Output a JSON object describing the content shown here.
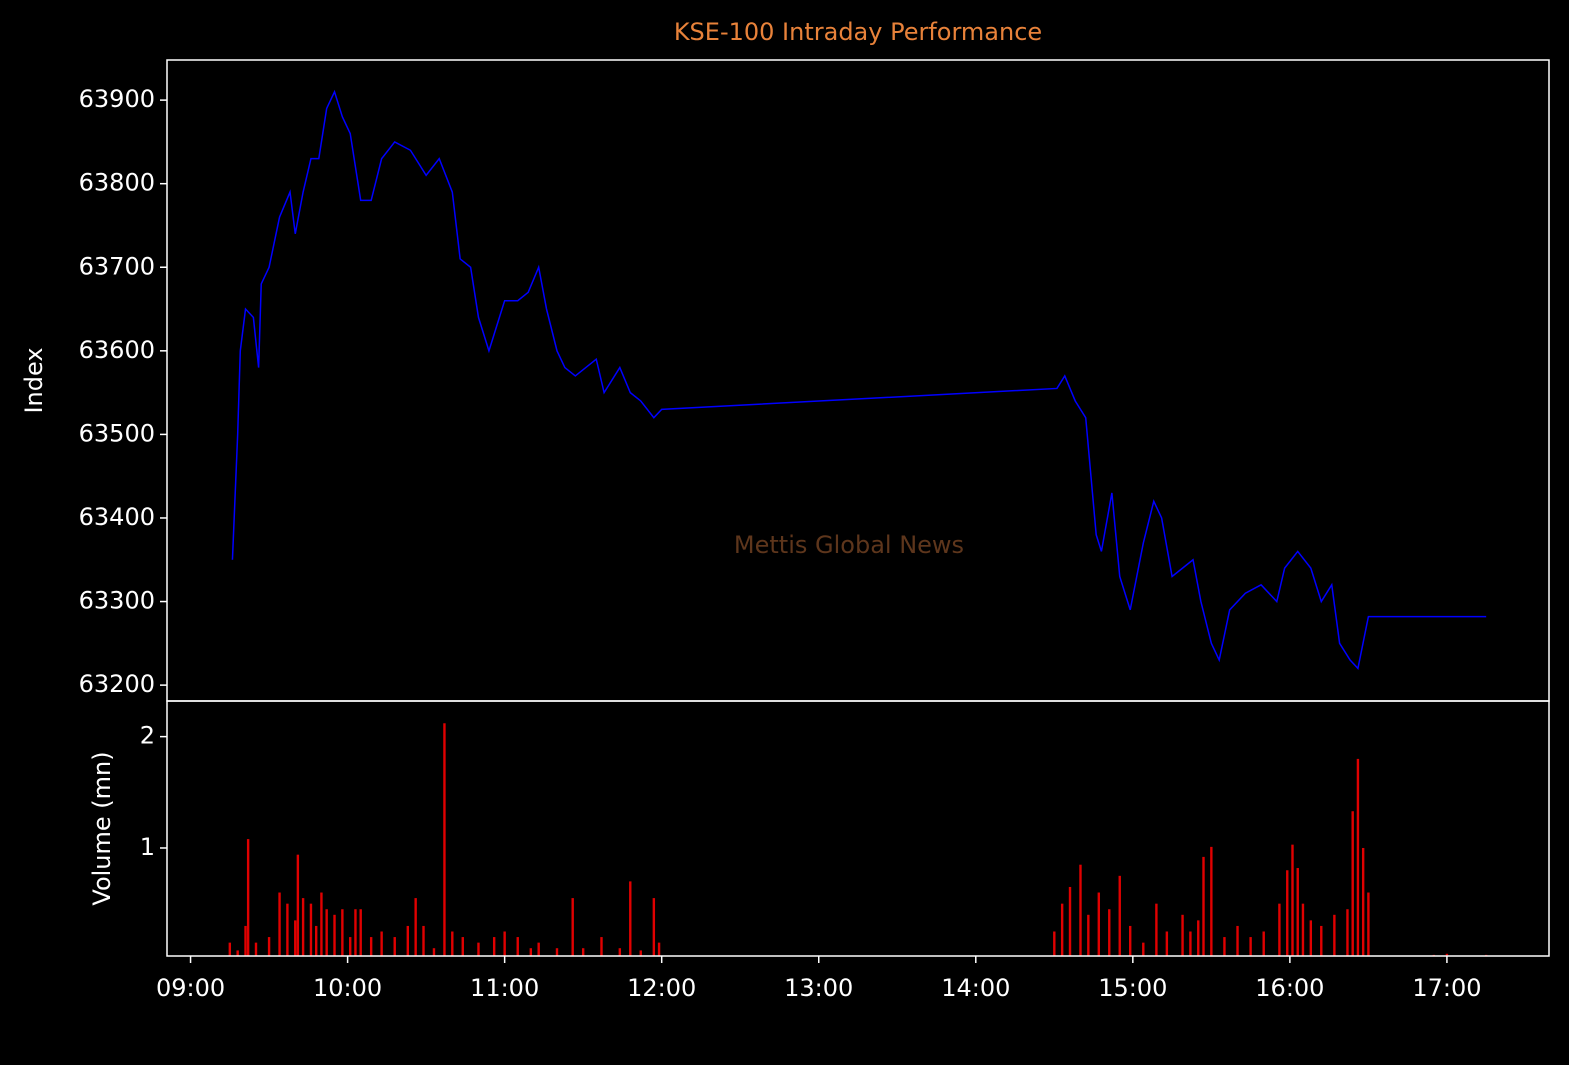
{
  "chart_data": [
    {
      "type": "line",
      "title": "KSE-100 Intraday Performance",
      "title_color": "#e8823a",
      "ylabel": "Index",
      "annotation": "Mettis Global News",
      "annotation_color": "#5e361c",
      "x": [
        "09:16",
        "09:18",
        "09:19",
        "09:21",
        "09:24",
        "09:26",
        "09:27",
        "09:30",
        "09:34",
        "09:38",
        "09:40",
        "09:43",
        "09:46",
        "09:49",
        "09:52",
        "09:55",
        "09:58",
        "10:01",
        "10:05",
        "10:09",
        "10:13",
        "10:18",
        "10:24",
        "10:30",
        "10:35",
        "10:40",
        "10:43",
        "10:47",
        "10:50",
        "10:54",
        "10:58",
        "11:00",
        "11:05",
        "11:09",
        "11:13",
        "11:16",
        "11:20",
        "11:23",
        "11:27",
        "11:35",
        "11:38",
        "11:44",
        "11:48",
        "11:52",
        "11:57",
        "12:00",
        "14:31",
        "14:34",
        "14:38",
        "14:42",
        "14:44",
        "14:46",
        "14:48",
        "14:52",
        "14:55",
        "14:59",
        "15:04",
        "15:08",
        "15:11",
        "15:15",
        "15:19",
        "15:23",
        "15:26",
        "15:30",
        "15:33",
        "15:37",
        "15:43",
        "15:49",
        "15:55",
        "15:58",
        "16:03",
        "16:08",
        "16:12",
        "16:16",
        "16:19",
        "16:23",
        "16:26",
        "16:30",
        "17:15"
      ],
      "series": [
        {
          "name": "Index",
          "color": "#0000ff",
          "values": [
            63350,
            63500,
            63600,
            63650,
            63640,
            63580,
            63680,
            63700,
            63760,
            63790,
            63740,
            63790,
            63830,
            63830,
            63890,
            63910,
            63880,
            63860,
            63780,
            63780,
            63830,
            63850,
            63840,
            63810,
            63830,
            63790,
            63710,
            63700,
            63640,
            63600,
            63640,
            63660,
            63660,
            63670,
            63700,
            63650,
            63600,
            63580,
            63570,
            63590,
            63550,
            63580,
            63550,
            63540,
            63520,
            63530,
            63555,
            63570,
            63540,
            63520,
            63450,
            63380,
            63360,
            63430,
            63330,
            63290,
            63370,
            63420,
            63400,
            63330,
            63340,
            63350,
            63300,
            63250,
            63230,
            63290,
            63310,
            63320,
            63300,
            63340,
            63360,
            63340,
            63300,
            63320,
            63250,
            63230,
            63220,
            63282,
            63282
          ]
        }
      ],
      "xlim": [
        "08:51",
        "17:39"
      ],
      "ylim": [
        63181,
        63948
      ],
      "yticks": [
        63200,
        63300,
        63400,
        63500,
        63600,
        63700,
        63800,
        63900
      ]
    },
    {
      "type": "bar",
      "ylabel": "Volume (mn)",
      "x": [
        "09:15",
        "09:18",
        "09:21",
        "09:22",
        "09:25",
        "09:30",
        "09:34",
        "09:37",
        "09:40",
        "09:41",
        "09:43",
        "09:46",
        "09:48",
        "09:50",
        "09:52",
        "09:55",
        "09:58",
        "10:01",
        "10:03",
        "10:05",
        "10:09",
        "10:13",
        "10:18",
        "10:23",
        "10:26",
        "10:29",
        "10:33",
        "10:37",
        "10:40",
        "10:44",
        "10:50",
        "10:56",
        "11:00",
        "11:05",
        "11:10",
        "11:13",
        "11:20",
        "11:26",
        "11:30",
        "11:37",
        "11:44",
        "11:48",
        "11:52",
        "11:57",
        "11:59",
        "14:30",
        "14:33",
        "14:36",
        "14:40",
        "14:43",
        "14:47",
        "14:51",
        "14:55",
        "14:59",
        "15:04",
        "15:09",
        "15:13",
        "15:19",
        "15:22",
        "15:25",
        "15:27",
        "15:30",
        "15:35",
        "15:40",
        "15:45",
        "15:50",
        "15:56",
        "15:59",
        "16:01",
        "16:03",
        "16:05",
        "16:08",
        "16:12",
        "16:17",
        "16:22",
        "16:24",
        "16:26",
        "16:28",
        "16:30",
        "16:55",
        "17:00",
        "17:15"
      ],
      "series": [
        {
          "name": "Volume",
          "color": "#e00000",
          "values": [
            0.15,
            0.08,
            0.3,
            1.08,
            0.15,
            0.2,
            0.6,
            0.5,
            0.35,
            0.94,
            0.55,
            0.5,
            0.3,
            0.6,
            0.45,
            0.4,
            0.45,
            0.2,
            0.45,
            0.45,
            0.2,
            0.25,
            0.2,
            0.3,
            0.55,
            0.3,
            0.1,
            2.12,
            0.25,
            0.2,
            0.15,
            0.2,
            0.25,
            0.2,
            0.1,
            0.15,
            0.1,
            0.55,
            0.1,
            0.2,
            0.1,
            0.7,
            0.08,
            0.55,
            0.15,
            0.25,
            0.5,
            0.65,
            0.85,
            0.4,
            0.6,
            0.45,
            0.75,
            0.3,
            0.15,
            0.5,
            0.25,
            0.4,
            0.25,
            0.35,
            0.92,
            1.01,
            0.2,
            0.3,
            0.2,
            0.25,
            0.5,
            0.8,
            1.03,
            0.82,
            0.5,
            0.35,
            0.3,
            0.4,
            0.45,
            1.33,
            1.8,
            1.0,
            0.6,
            0.04,
            0.05,
            0.04
          ]
        }
      ],
      "xlim": [
        "08:51",
        "17:39"
      ],
      "ylim": [
        0.03,
        2.32
      ],
      "yticks": [
        1,
        2
      ],
      "xticks": [
        "09:00",
        "10:00",
        "11:00",
        "12:00",
        "13:00",
        "14:00",
        "15:00",
        "16:00",
        "17:00"
      ]
    }
  ]
}
